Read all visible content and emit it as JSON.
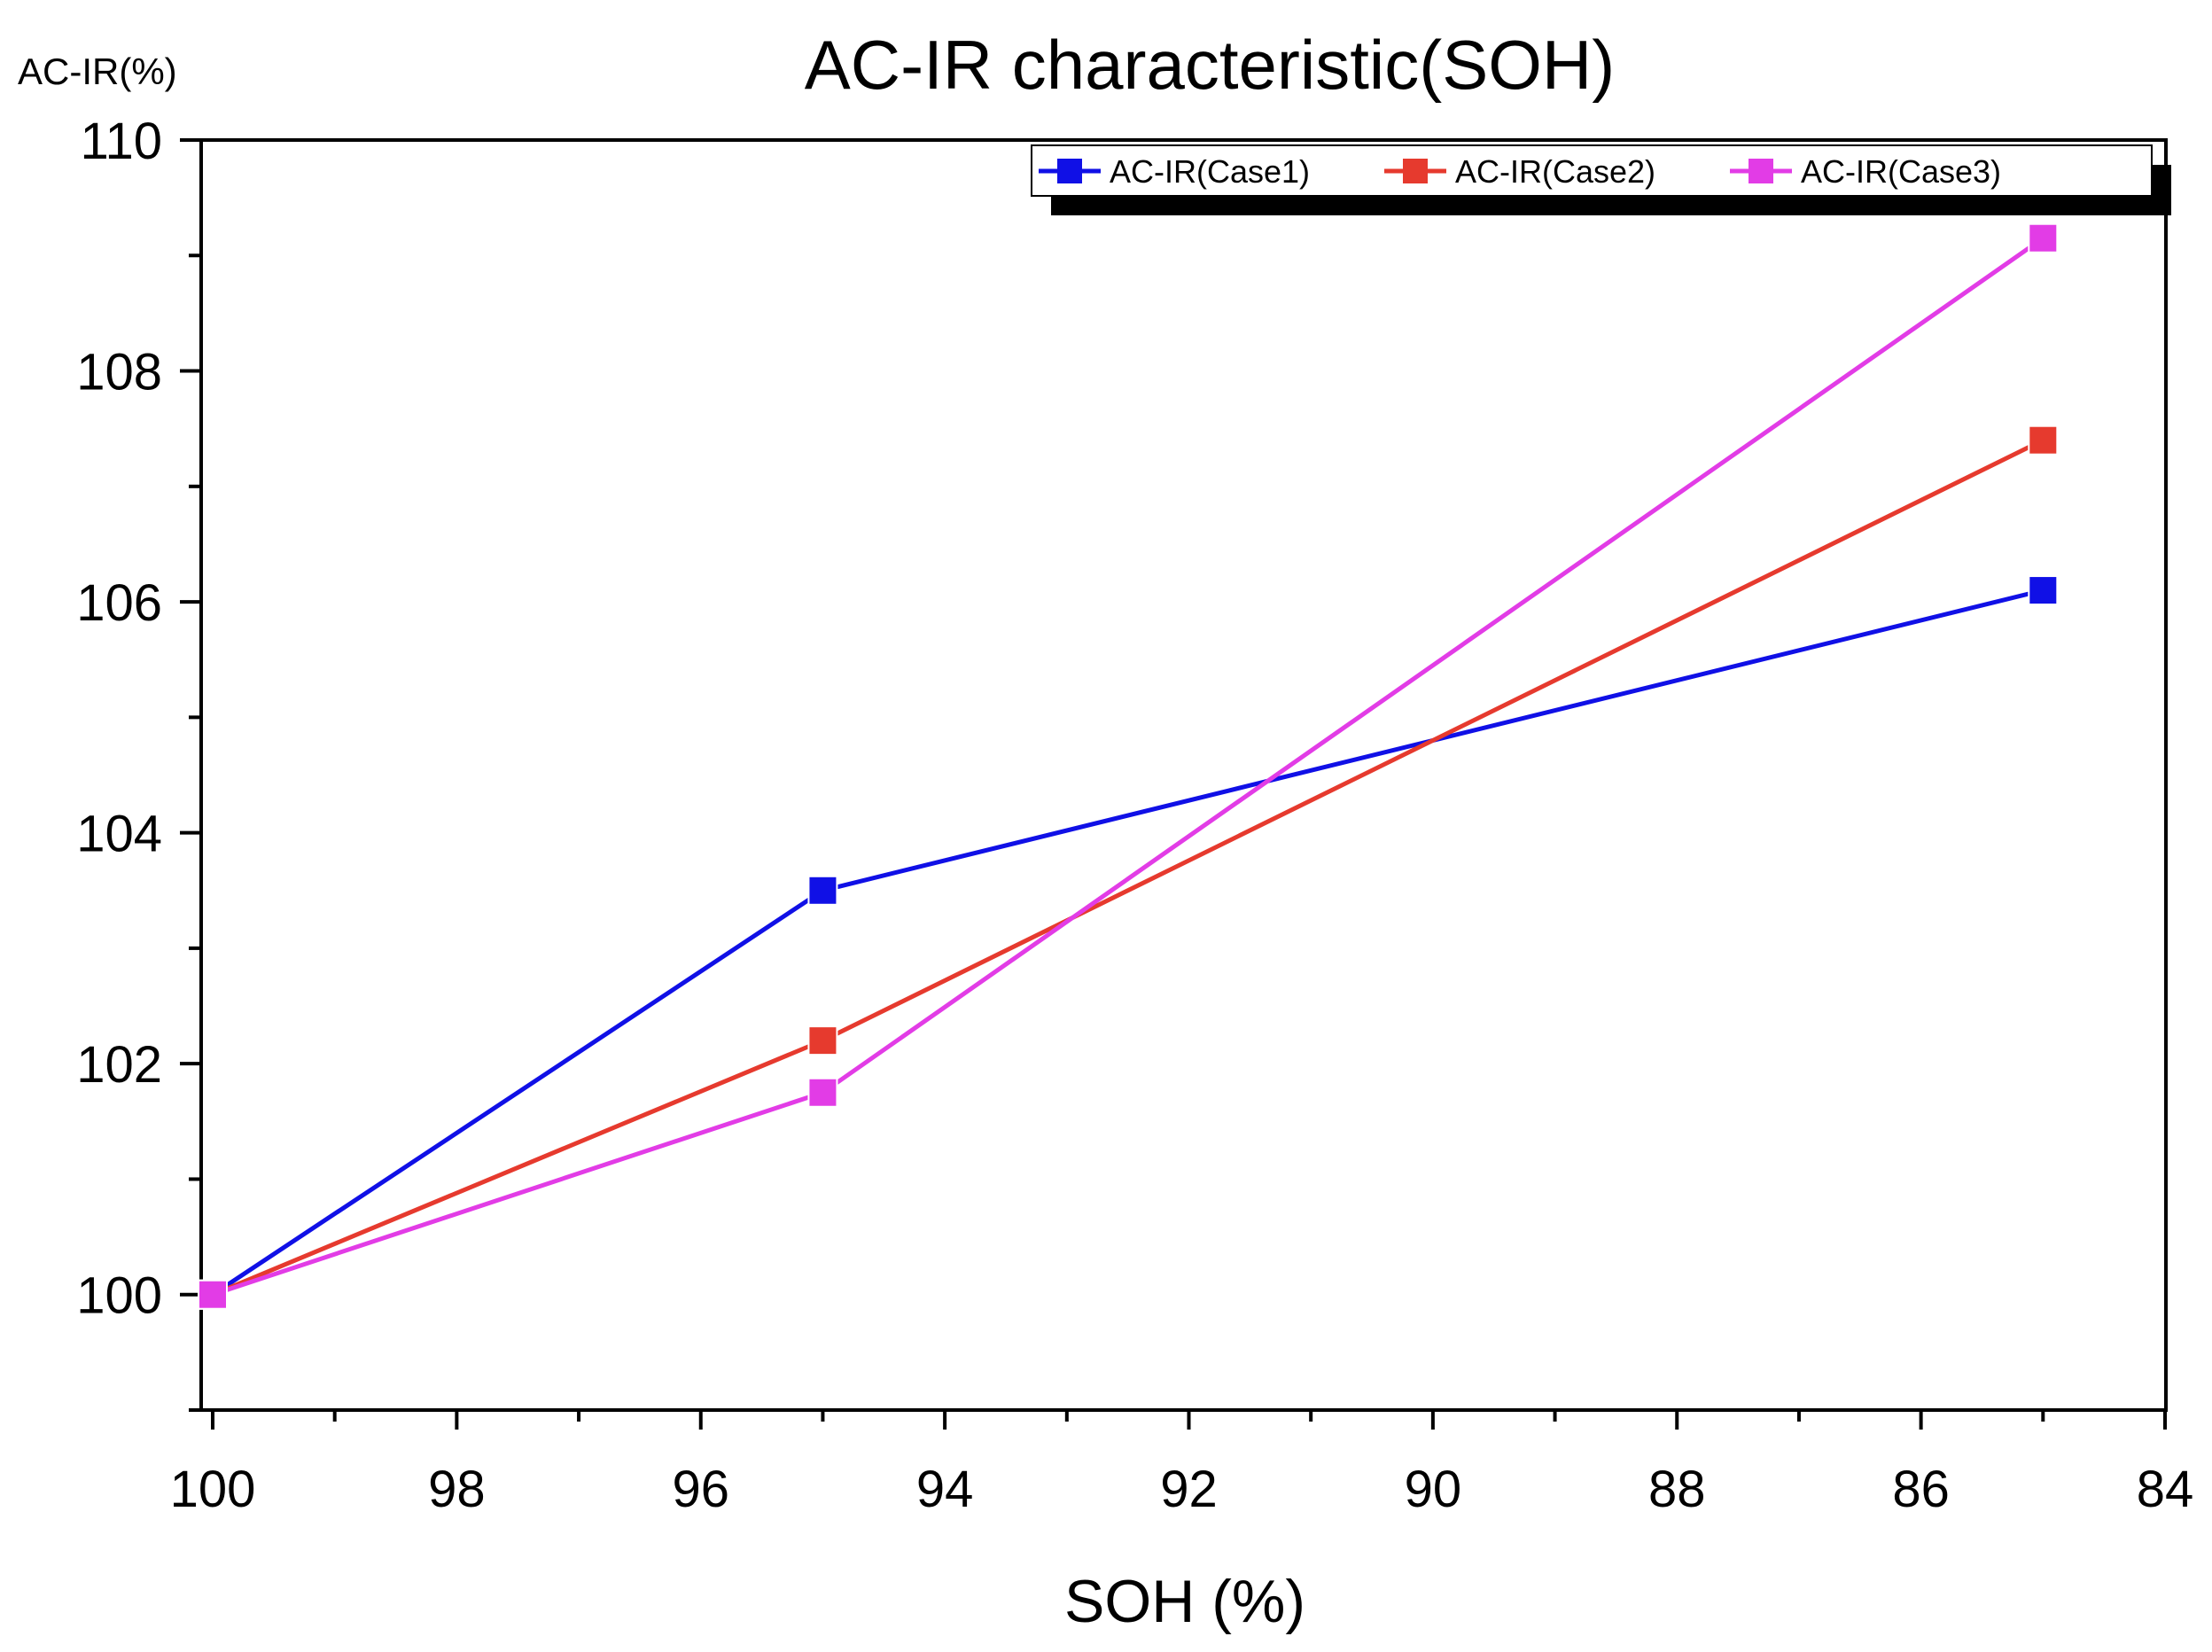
{
  "chart_data": {
    "type": "line",
    "title": "AC-IR characteristic(SOH)",
    "xlabel": "SOH (%)",
    "ylabel": "AC-IR(%)",
    "x": [
      100,
      95,
      85
    ],
    "xlim": [
      100,
      84
    ],
    "ylim": [
      99,
      110
    ],
    "x_ticks": [
      100,
      98,
      96,
      94,
      92,
      90,
      88,
      86,
      84
    ],
    "y_ticks": [
      100,
      102,
      104,
      106,
      108,
      110
    ],
    "grid": false,
    "legend_position": "top-right",
    "series": [
      {
        "name": "AC-IR(Case1)",
        "color": "#1010e6",
        "values": [
          100,
          103.5,
          106.1
        ]
      },
      {
        "name": "AC-IR(Case2)",
        "color": "#e63a2e",
        "values": [
          100,
          102.2,
          107.4
        ]
      },
      {
        "name": "AC-IR(Case3)",
        "color": "#e23ce6",
        "values": [
          100,
          101.75,
          109.15
        ]
      }
    ]
  }
}
